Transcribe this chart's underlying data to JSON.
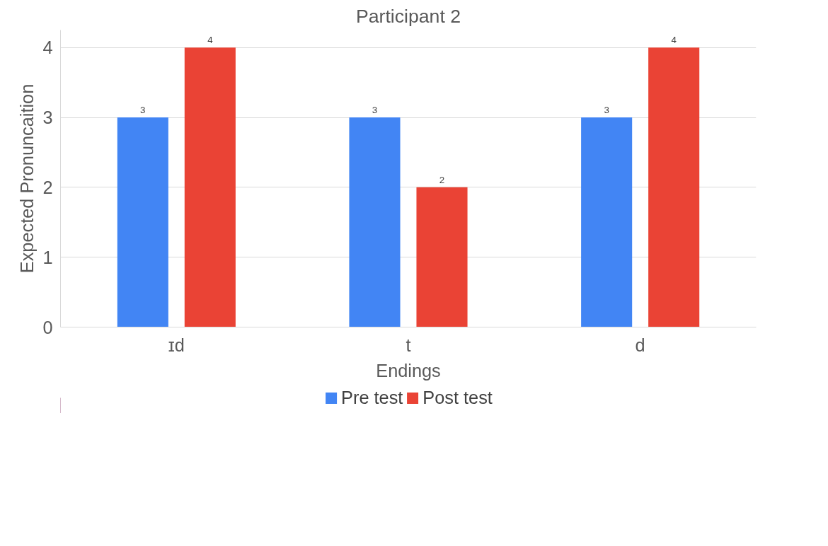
{
  "chart_data": {
    "type": "bar",
    "title": "Participant 2",
    "xlabel": "Endings",
    "ylabel": "Expected Pronuncaition",
    "categories": [
      "ɪd",
      "t",
      "d"
    ],
    "series": [
      {
        "name": "Pre test",
        "color": "#4285f4",
        "values": [
          3,
          3,
          3
        ]
      },
      {
        "name": "Post test",
        "color": "#ea4335",
        "values": [
          4,
          2,
          4
        ]
      }
    ],
    "ylim": [
      0,
      4.25
    ],
    "yticks": [
      0,
      1,
      2,
      3,
      4
    ],
    "grid": "y",
    "legend": "bottom",
    "data_labels": true
  }
}
